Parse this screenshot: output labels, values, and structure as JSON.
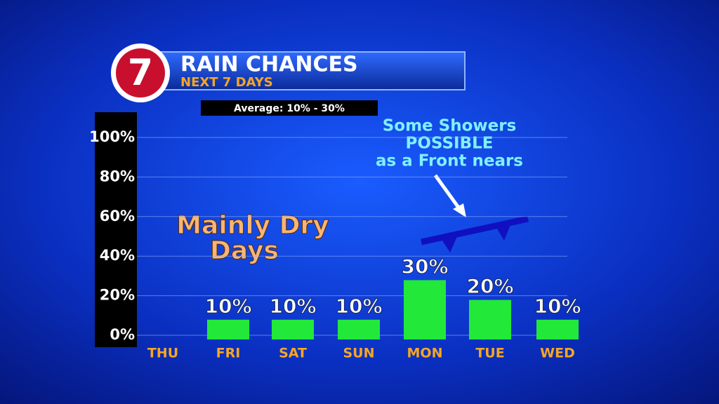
{
  "chart_data": {
    "type": "bar",
    "logo": "7",
    "title": "RAIN CHANCES",
    "subtitle": "NEXT 7 DAYS",
    "average_note": "Average: 10% - 30%",
    "annotations": [
      [
        "Mainly Dry",
        "Days"
      ],
      [
        "Some Showers",
        "POSSIBLE",
        "as a Front nears"
      ]
    ],
    "categories": [
      "THU",
      "FRI",
      "SAT",
      "SUN",
      "MON",
      "TUE",
      "WED"
    ],
    "values": [
      null,
      10,
      10,
      10,
      30,
      20,
      10
    ],
    "value_labels": [
      null,
      "10%",
      "10%",
      "10%",
      "30%",
      "20%",
      "10%"
    ],
    "color": "#22e83a",
    "ylim": [
      0,
      100
    ],
    "yticks": [
      {
        "value": 0,
        "label": "0%"
      },
      {
        "value": 20,
        "label": "20%"
      },
      {
        "value": 40,
        "label": "40%"
      },
      {
        "value": 60,
        "label": "60%"
      },
      {
        "value": 80,
        "label": "80%"
      },
      {
        "value": 100,
        "label": "100%"
      }
    ],
    "grid": true
  }
}
